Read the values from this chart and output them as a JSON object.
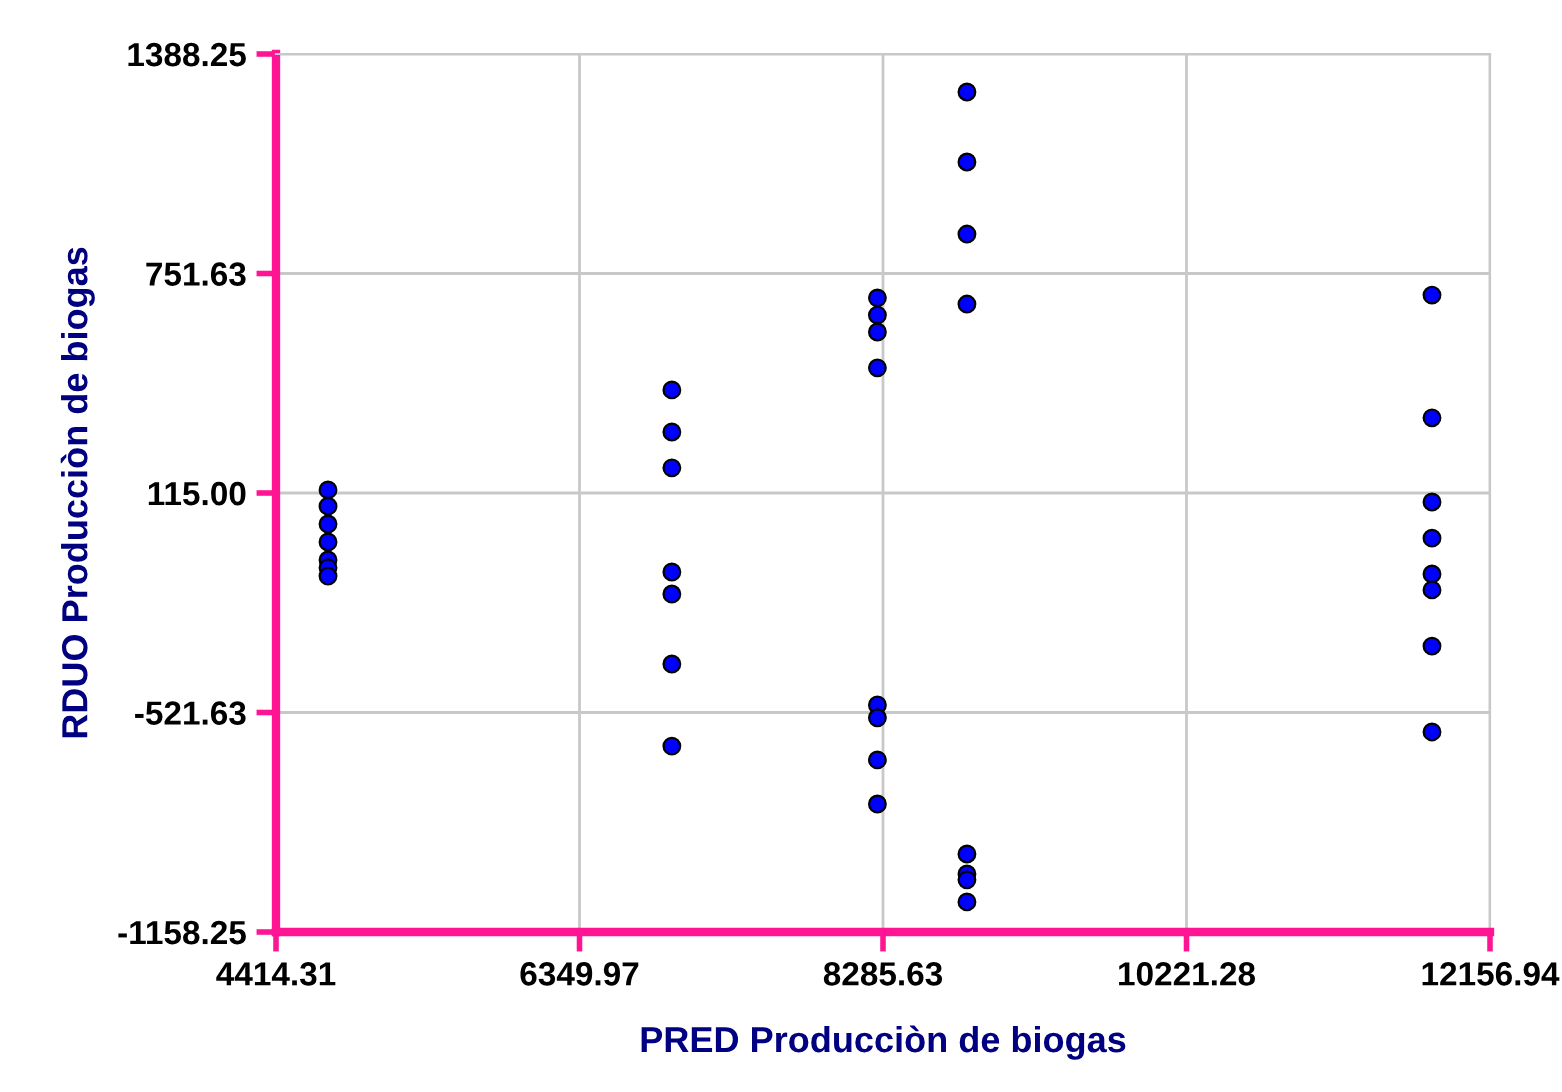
{
  "chart_data": {
    "type": "scatter",
    "xlabel": "PRED Producciòn de biogas",
    "ylabel": "RDUO Producciòn de biogas",
    "series": [
      {
        "color": "#0000ff",
        "x": [
          4746,
          4746,
          4746,
          4746,
          4746,
          4746,
          4746,
          6939,
          6939,
          6939,
          6939,
          6939,
          6939,
          6939,
          8250,
          8250,
          8250,
          8250,
          8250,
          8250,
          8250,
          8250,
          8821,
          8821,
          8821,
          8821,
          8821,
          8821,
          8821,
          8821,
          11787,
          11787,
          11787,
          11787,
          11787,
          11787,
          11787,
          11787
        ],
        "values": [
          124,
          77,
          25,
          -27,
          -79,
          -102,
          -126,
          414,
          292,
          188,
          -114,
          -178,
          -381,
          -619,
          681,
          631,
          582,
          478,
          -500,
          -537,
          -659,
          -787,
          1278,
          1075,
          866,
          663,
          -932,
          -990,
          -1007,
          -1071,
          689,
          333,
          89,
          -16,
          -120,
          -166,
          -329,
          -578
        ]
      }
    ],
    "xlim": [
      4414.31,
      12156.94
    ],
    "xticks": [
      4414.31,
      6349.97,
      8285.63,
      10221.28,
      12156.94
    ],
    "ylim": [
      -1158.25,
      1388.25
    ],
    "yticks": [
      -1158.25,
      -521.63,
      {
        "value": 115,
        "label": "115.00"
      },
      751.63,
      1388.25
    ],
    "grid": true,
    "marker": "circle"
  }
}
